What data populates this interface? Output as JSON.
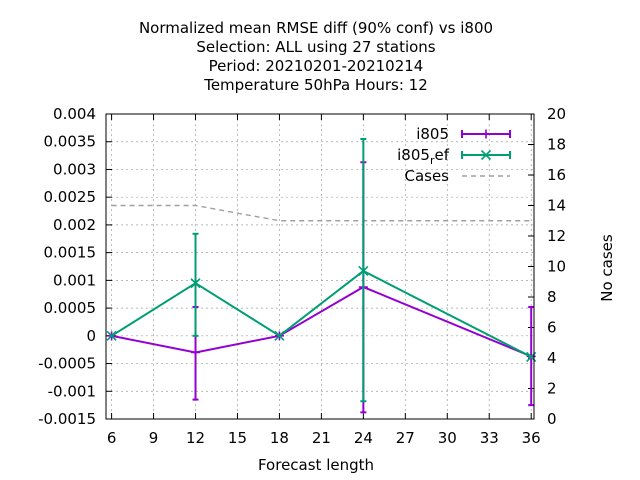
{
  "chart_data": {
    "type": "line",
    "title_lines": [
      "Normalized mean RMSE diff (90% conf) vs i800",
      "Selection: ALL using    27 stations",
      "Period: 20210201-20210214",
      "Temperature 50hPa   Hours:  12"
    ],
    "xlabel": "Forecast length",
    "ylabel": "",
    "y2label": "No cases",
    "xlim": [
      5.6,
      36.2
    ],
    "ylim": [
      -0.0015,
      0.004
    ],
    "y2lim": [
      0,
      20
    ],
    "xticks": [
      "6",
      "9",
      "12",
      "15",
      "18",
      "21",
      "24",
      "27",
      "30",
      "33",
      "36"
    ],
    "yticks": [
      "-0.0015",
      "-0.001",
      "-0.0005",
      "0",
      "0.0005",
      "0.001",
      "0.0015",
      "0.002",
      "0.0025",
      "0.003",
      "0.0035",
      "0.004"
    ],
    "y2ticks": [
      "0",
      "2",
      "4",
      "6",
      "8",
      "10",
      "12",
      "14",
      "16",
      "18",
      "20"
    ],
    "grid": true,
    "legend_position": "top-right",
    "x": [
      6,
      12,
      18,
      24,
      36
    ],
    "series": [
      {
        "name": "i805",
        "color": "#9400d3",
        "marker": "plus",
        "values": [
          0.0,
          -0.0003,
          0.0,
          0.00088,
          -0.00037
        ],
        "err_low": [
          0.0,
          -0.00115,
          0.0,
          -0.00138,
          -0.00125
        ],
        "err_high": [
          0.0,
          0.00052,
          0.0,
          0.00313,
          0.00052
        ]
      },
      {
        "name": "i805_ref",
        "legend_base": "i805",
        "legend_sub": "r",
        "legend_rest": "ef",
        "color": "#009e73",
        "marker": "cross",
        "values": [
          0.0,
          0.00095,
          0.0,
          0.00117,
          -0.00038
        ],
        "err_low": [
          0.0,
          0.0,
          0.0,
          -0.00118,
          -0.00038
        ],
        "err_high": [
          0.0,
          0.00184,
          0.0,
          0.00355,
          -0.00038
        ]
      }
    ],
    "cases": {
      "name": "Cases",
      "color": "#a0a0a0",
      "axis": "y2",
      "x": [
        6,
        12,
        18,
        24,
        36
      ],
      "values": [
        14,
        14,
        13,
        13,
        13
      ]
    }
  }
}
